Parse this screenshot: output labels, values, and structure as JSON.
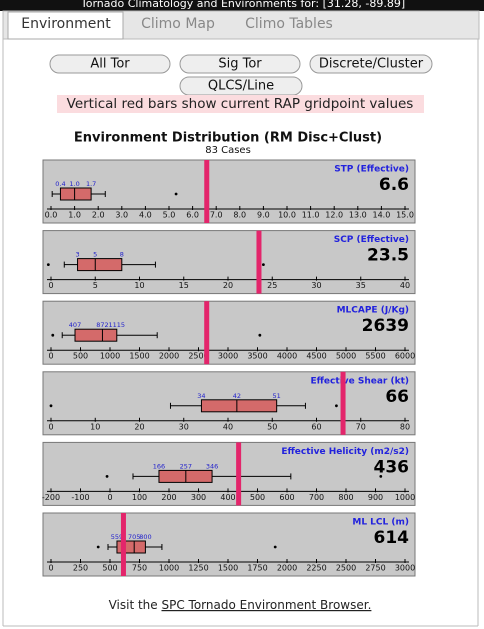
{
  "header": {
    "title": "Tornado Climatology and Environments for: [31.28, -89.89]"
  },
  "tabs": [
    "Environment",
    "Climo Map",
    "Climo Tables"
  ],
  "buttons": [
    "All Tor",
    "Sig Tor",
    "Discrete/Cluster",
    "QLCS/Line"
  ],
  "note": "Vertical red bars show current RAP gridpoint values",
  "figure": {
    "title": "Environment Distribution (RM Disc+Clust)",
    "subtitle": "83 Cases"
  },
  "chart_data": [
    {
      "type": "box",
      "title": "STP (Effective)",
      "current": 6.6,
      "current_color": "#e3256b",
      "box_color": "#d46a6a",
      "xlim": [
        0,
        15
      ],
      "xticks": [
        {
          "value": 0,
          "label": "0.0"
        },
        {
          "value": 1,
          "label": "1.0"
        },
        {
          "value": 2,
          "label": "2.0"
        },
        {
          "value": 3,
          "label": "3.0"
        },
        {
          "value": 4,
          "label": "4.0"
        },
        {
          "value": 5,
          "label": "5.0"
        },
        {
          "value": 6,
          "label": "6.0"
        },
        {
          "value": 7,
          "label": "7.0"
        },
        {
          "value": 8,
          "label": "8.0"
        },
        {
          "value": 9,
          "label": "9.0"
        },
        {
          "value": 10,
          "label": "10.0"
        },
        {
          "value": 11,
          "label": "11.0"
        },
        {
          "value": 12,
          "label": "12.0"
        },
        {
          "value": 13,
          "label": "13.0"
        },
        {
          "value": 14,
          "label": "14.0"
        },
        {
          "value": 15,
          "label": "15.0"
        }
      ],
      "whislo": 0.05,
      "q1": 0.4,
      "med": 1.0,
      "q3": 1.7,
      "whishi": 2.3,
      "value_labels": [
        "0.4",
        "1.0",
        "1.7"
      ],
      "fliers": [
        5.3
      ]
    },
    {
      "type": "box",
      "title": "SCP (Effective)",
      "current": 23.5,
      "current_color": "#e3256b",
      "box_color": "#d46a6a",
      "xlim": [
        0,
        40
      ],
      "xticks": [
        0,
        5,
        10,
        15,
        20,
        25,
        30,
        35,
        40
      ],
      "whislo": 1.5,
      "q1": 3,
      "med": 5,
      "q3": 8,
      "whishi": 11.8,
      "fliers": [
        -0.3,
        24
      ]
    },
    {
      "type": "box",
      "title": "MLCAPE (J/Kg)",
      "current": 2639,
      "current_color": "#e3256b",
      "box_color": "#d46a6a",
      "xlim": [
        0,
        6000
      ],
      "xticks": [
        0,
        500,
        1000,
        1500,
        2000,
        2500,
        3000,
        3500,
        4000,
        4500,
        5000,
        5500,
        6000
      ],
      "whislo": 190,
      "q1": 407,
      "med": 872,
      "q3": 1115,
      "whishi": 1800,
      "fliers": [
        30,
        3540
      ]
    },
    {
      "type": "box",
      "title": "Effective Shear (kt)",
      "current": 66,
      "current_color": "#e3256b",
      "box_color": "#d46a6a",
      "xlim": [
        0,
        80
      ],
      "xticks": [
        0,
        10,
        20,
        30,
        40,
        50,
        60,
        70,
        80
      ],
      "whislo": 27,
      "q1": 34,
      "med": 42,
      "q3": 51,
      "whishi": 57.5,
      "fliers": [
        0,
        64.5
      ]
    },
    {
      "type": "box",
      "title": "Effective Helicity (m2/s2)",
      "current": 436,
      "current_color": "#e3256b",
      "box_color": "#d46a6a",
      "xlim": [
        -200,
        1000
      ],
      "xticks": [
        -200,
        -100,
        0,
        100,
        200,
        300,
        400,
        500,
        600,
        700,
        800,
        900,
        1000
      ],
      "whislo": 78,
      "q1": 166,
      "med": 257,
      "q3": 346,
      "whishi": 613,
      "fliers": [
        -10,
        918
      ]
    },
    {
      "type": "box",
      "title": "ML LCL (m)",
      "current": 614,
      "current_color": "#e3256b",
      "box_color": "#d46a6a",
      "xlim": [
        0,
        3000
      ],
      "xticks": [
        0,
        250,
        500,
        750,
        1000,
        1250,
        1500,
        1750,
        2000,
        2250,
        2500,
        2750,
        3000
      ],
      "whislo": 483,
      "q1": 559,
      "med": 705,
      "q3": 800,
      "whishi": 940,
      "fliers": [
        400,
        1900
      ]
    }
  ],
  "footer": {
    "text": "Visit the",
    "link": "SPC Tornado Environment Browser."
  }
}
